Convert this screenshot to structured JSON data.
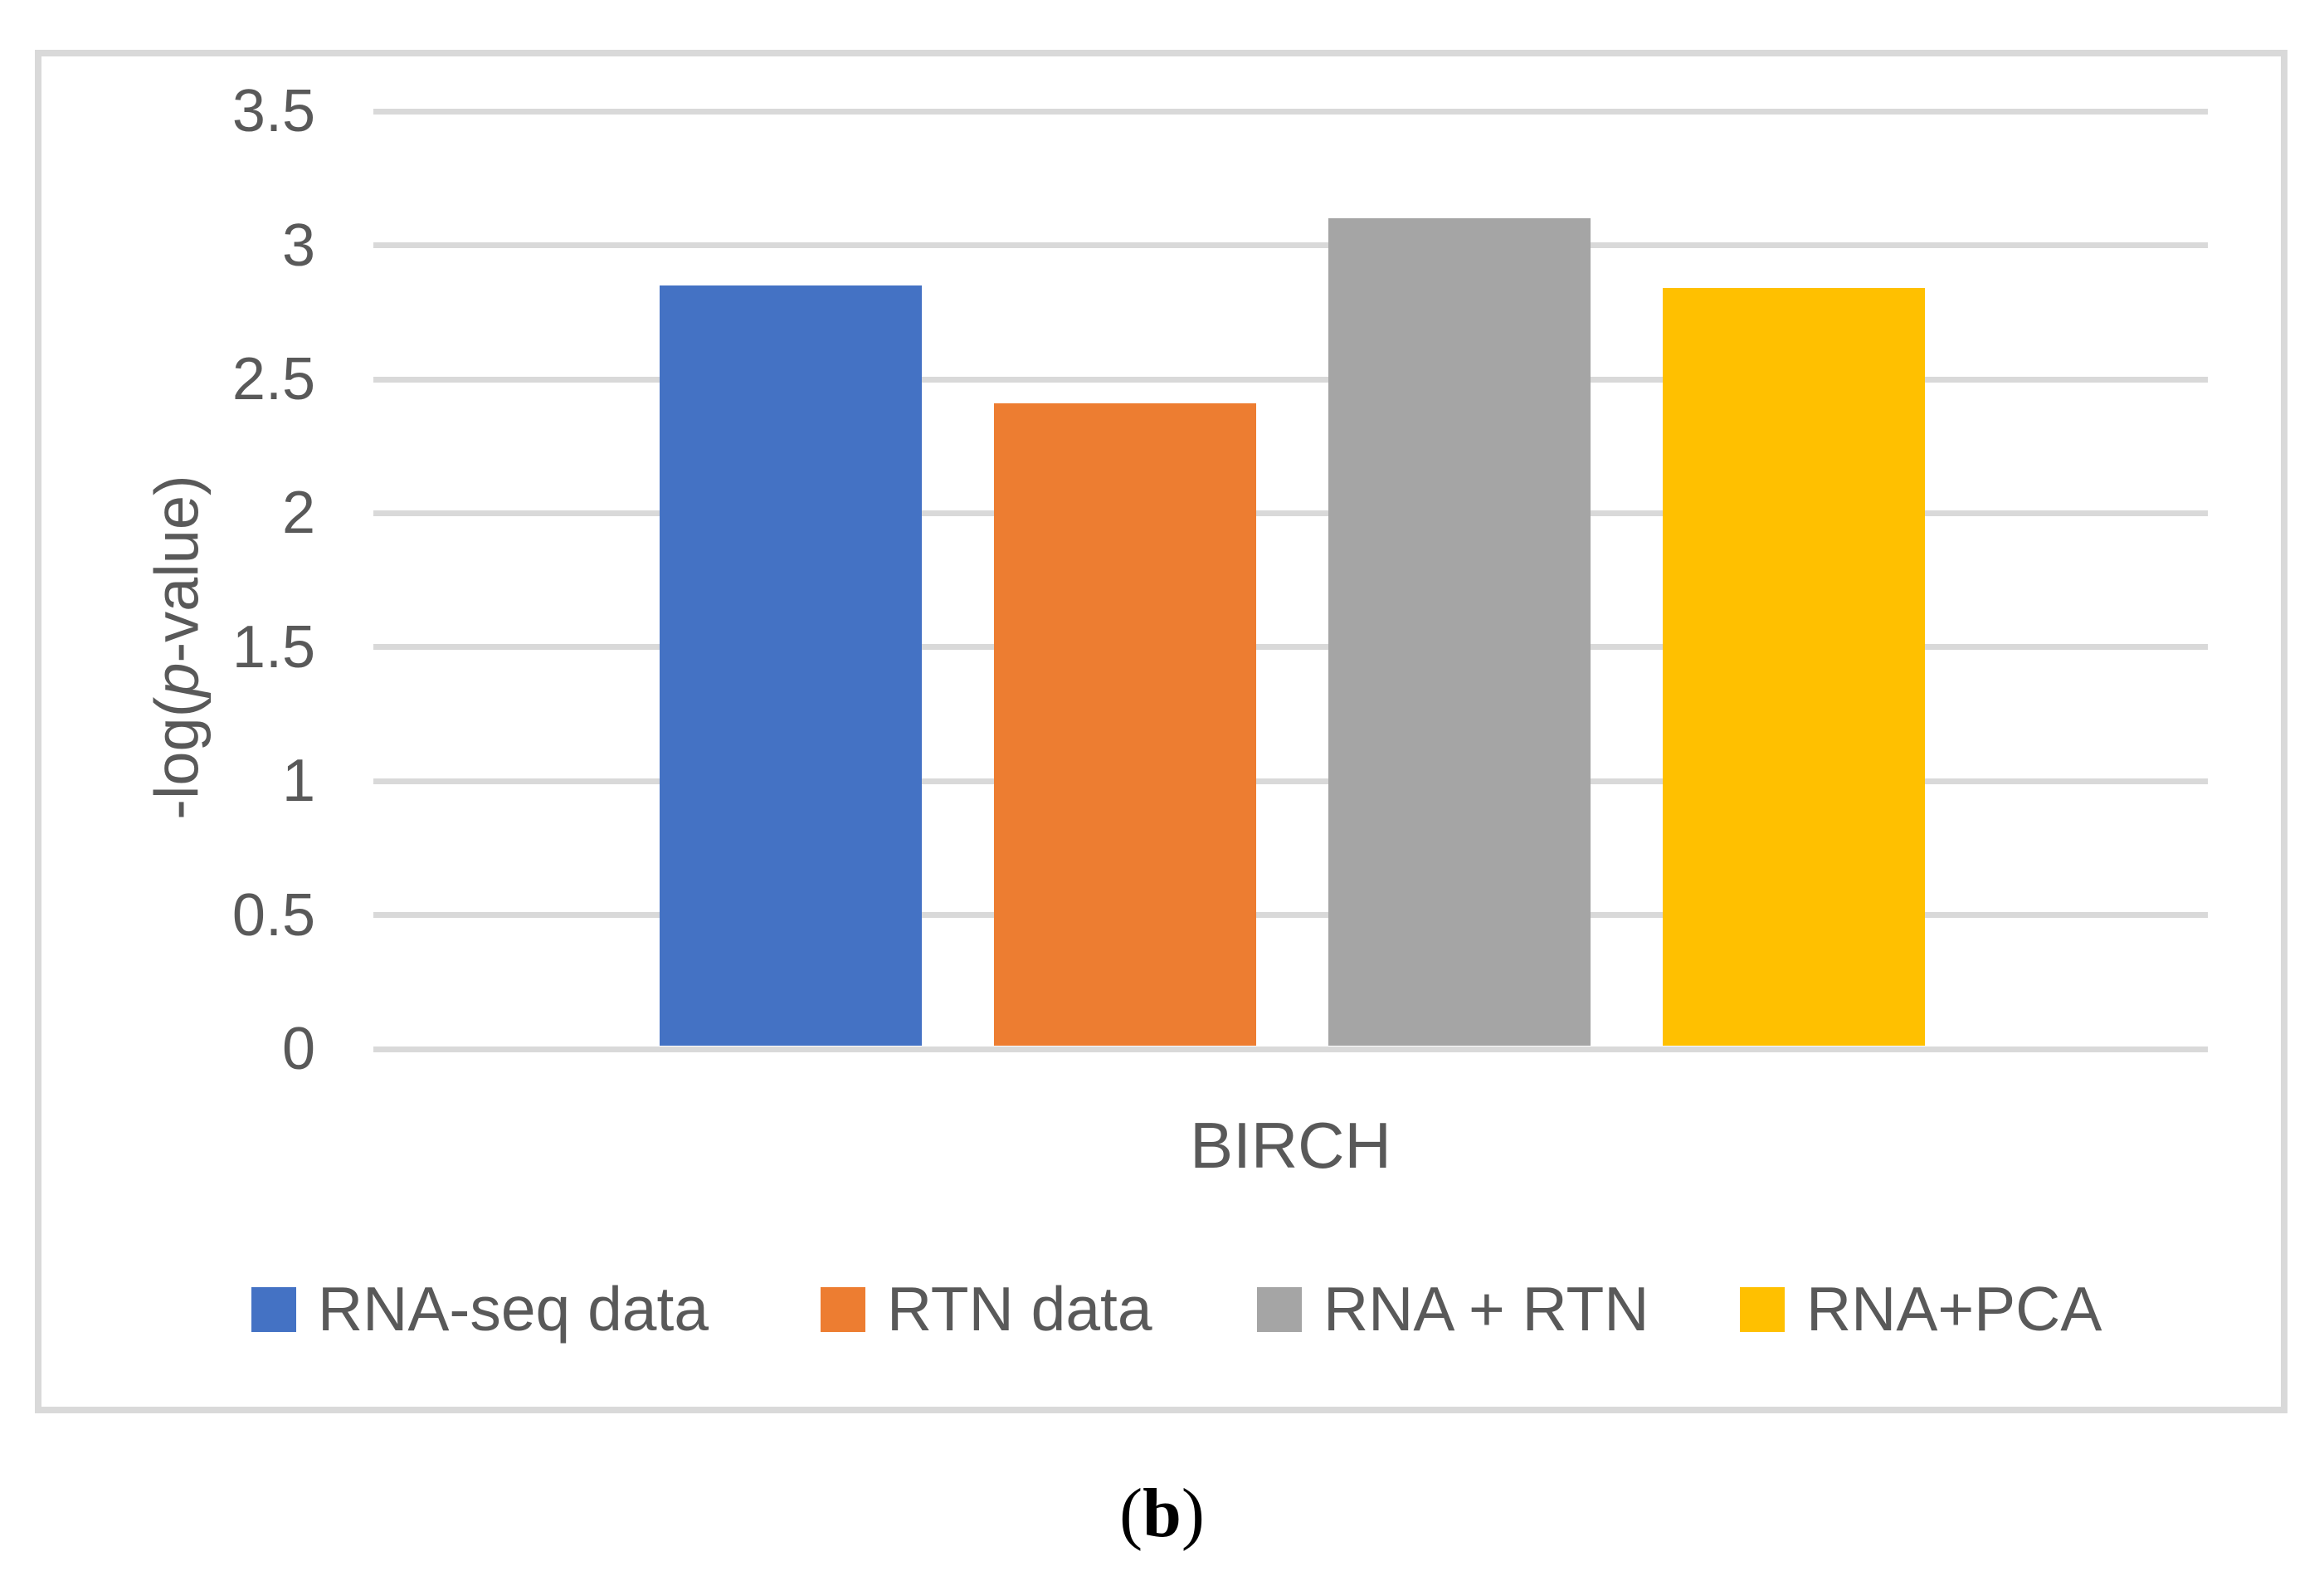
{
  "figure": {
    "caption_open": "(",
    "caption_letter": "b",
    "caption_close": ")"
  },
  "chart_data": {
    "type": "bar",
    "title": "",
    "categories": [
      "BIRCH"
    ],
    "series": [
      {
        "name": "RNA-seq data",
        "color": "#4472C4",
        "values": [
          2.85
        ]
      },
      {
        "name": "RTN data",
        "color": "#ED7D31",
        "values": [
          2.41
        ]
      },
      {
        "name": "RNA + RTN",
        "color": "#A5A5A5",
        "values": [
          3.1
        ]
      },
      {
        "name": "RNA+PCA",
        "color": "#FFC000",
        "values": [
          2.84
        ]
      }
    ],
    "xlabel": "",
    "ylabel": "-log(p-value)",
    "ylabel_parts": {
      "prefix": "-log(",
      "italic": "p",
      "suffix": "-value)"
    },
    "ylim": [
      0,
      3.5
    ],
    "ytick_step": 0.5,
    "yticks": [
      "0",
      "0.5",
      "1",
      "1.5",
      "2",
      "2.5",
      "3",
      "3.5"
    ],
    "grid": true,
    "legend_position": "bottom"
  },
  "colors": {
    "background": "#FFFFFF",
    "frame_border": "#D9D9D9",
    "gridline": "#D9D9D9",
    "text": "#595959",
    "caption_text": "#000000"
  }
}
